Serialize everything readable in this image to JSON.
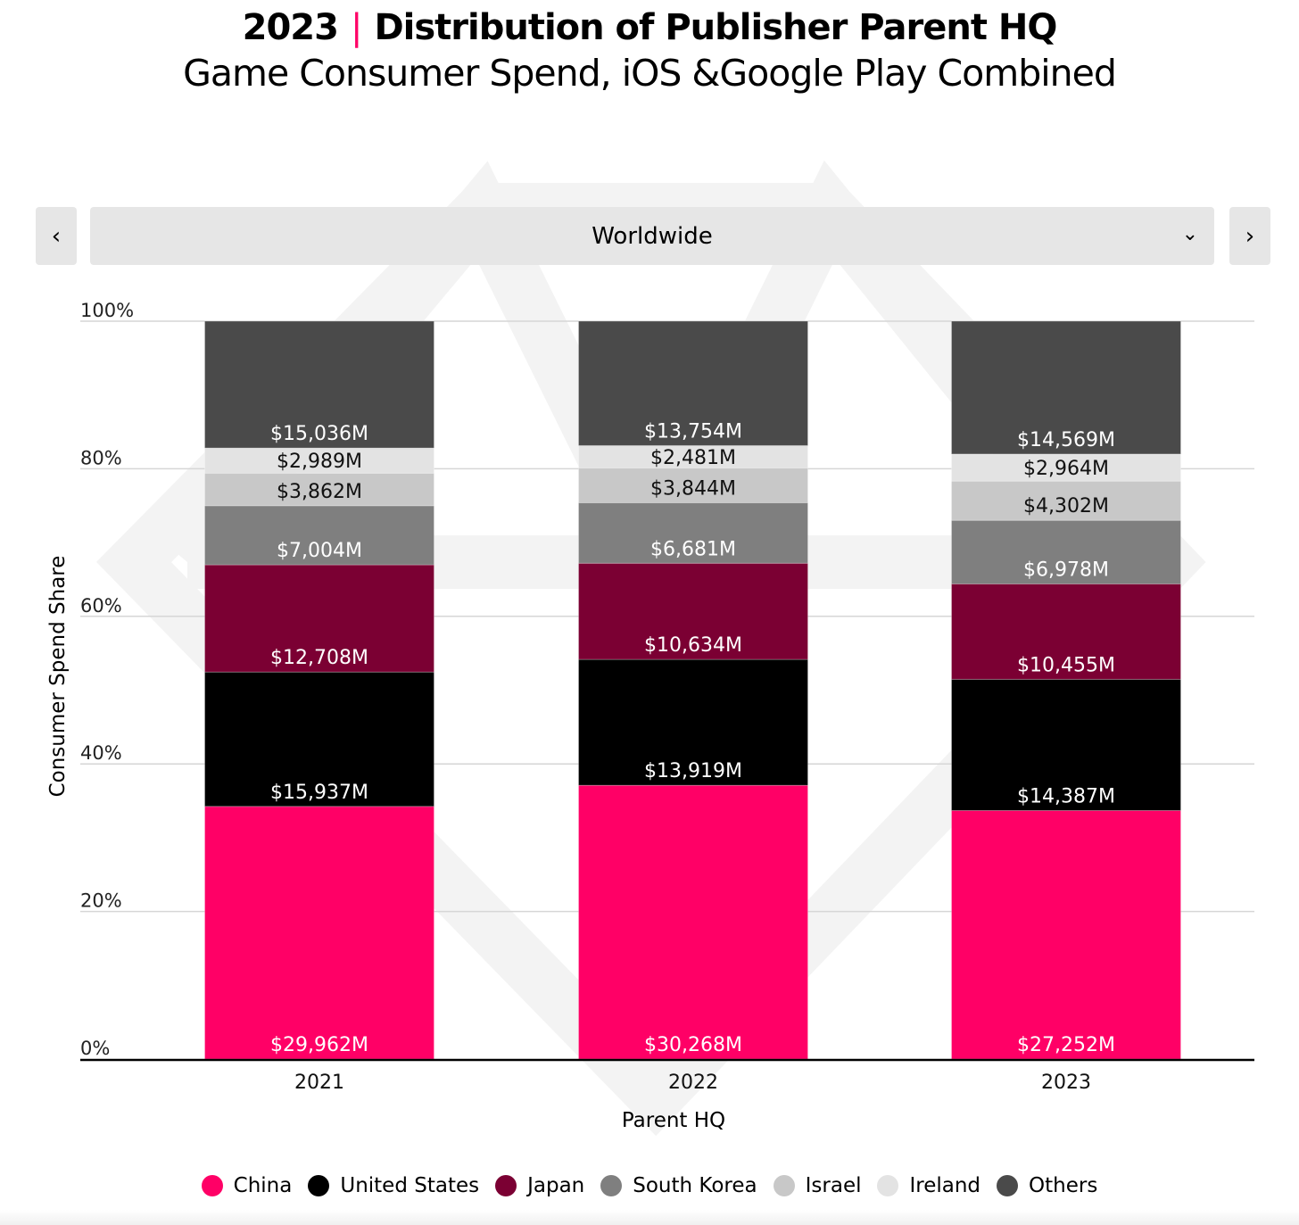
{
  "header": {
    "year": "2023",
    "separator": "|",
    "title": "Distribution of Publisher Parent HQ",
    "subtitle": "Game Consumer Spend, iOS &Google Play Combined"
  },
  "controls": {
    "prev_icon": "chevron-left-icon",
    "next_icon": "chevron-right-icon",
    "prev_glyph": "‹",
    "next_glyph": "›",
    "region_selected": "Worldwide",
    "dropdown_glyph": "⌄"
  },
  "colors": {
    "accent": "#FF0066"
  },
  "chart_data": {
    "type": "bar",
    "stacked": "percent",
    "categories": [
      "2021",
      "2022",
      "2023"
    ],
    "xlabel": "Parent HQ",
    "ylabel": "Consumer Spend Share",
    "ylim": [
      0,
      100
    ],
    "yticks": [
      "0%",
      "20%",
      "40%",
      "60%",
      "80%",
      "100%"
    ],
    "grid": true,
    "legend_position": "bottom",
    "series": [
      {
        "name": "China",
        "color": "#FF0066",
        "label_color": "#ffffff",
        "values": [
          29962,
          30268,
          27252
        ],
        "labels": [
          "$29,962M",
          "$30,268M",
          "$27,252M"
        ]
      },
      {
        "name": "United States",
        "color": "#000000",
        "label_color": "#ffffff",
        "values": [
          15937,
          13919,
          14387
        ],
        "labels": [
          "$15,937M",
          "$13,919M",
          "$14,387M"
        ]
      },
      {
        "name": "Japan",
        "color": "#7B0033",
        "label_color": "#ffffff",
        "values": [
          12708,
          10634,
          10455
        ],
        "labels": [
          "$12,708M",
          "$10,634M",
          "$10,455M"
        ]
      },
      {
        "name": "South Korea",
        "color": "#7F7F7F",
        "label_color": "#ffffff",
        "values": [
          7004,
          6681,
          6978
        ],
        "labels": [
          "$7,004M",
          "$6,681M",
          "$6,978M"
        ]
      },
      {
        "name": "Israel",
        "color": "#C8C8C8",
        "label_color": "#111111",
        "values": [
          3862,
          3844,
          4302
        ],
        "labels": [
          "$3,862M",
          "$3,844M",
          "$4,302M"
        ]
      },
      {
        "name": "Ireland",
        "color": "#E3E3E3",
        "label_color": "#111111",
        "values": [
          2989,
          2481,
          2964
        ],
        "labels": [
          "$2,989M",
          "$2,481M",
          "$2,964M"
        ]
      },
      {
        "name": "Others",
        "color": "#4A4A4A",
        "label_color": "#ffffff",
        "values": [
          15036,
          13754,
          14569
        ],
        "labels": [
          "$15,036M",
          "$13,754M",
          "$14,569M"
        ]
      }
    ]
  }
}
